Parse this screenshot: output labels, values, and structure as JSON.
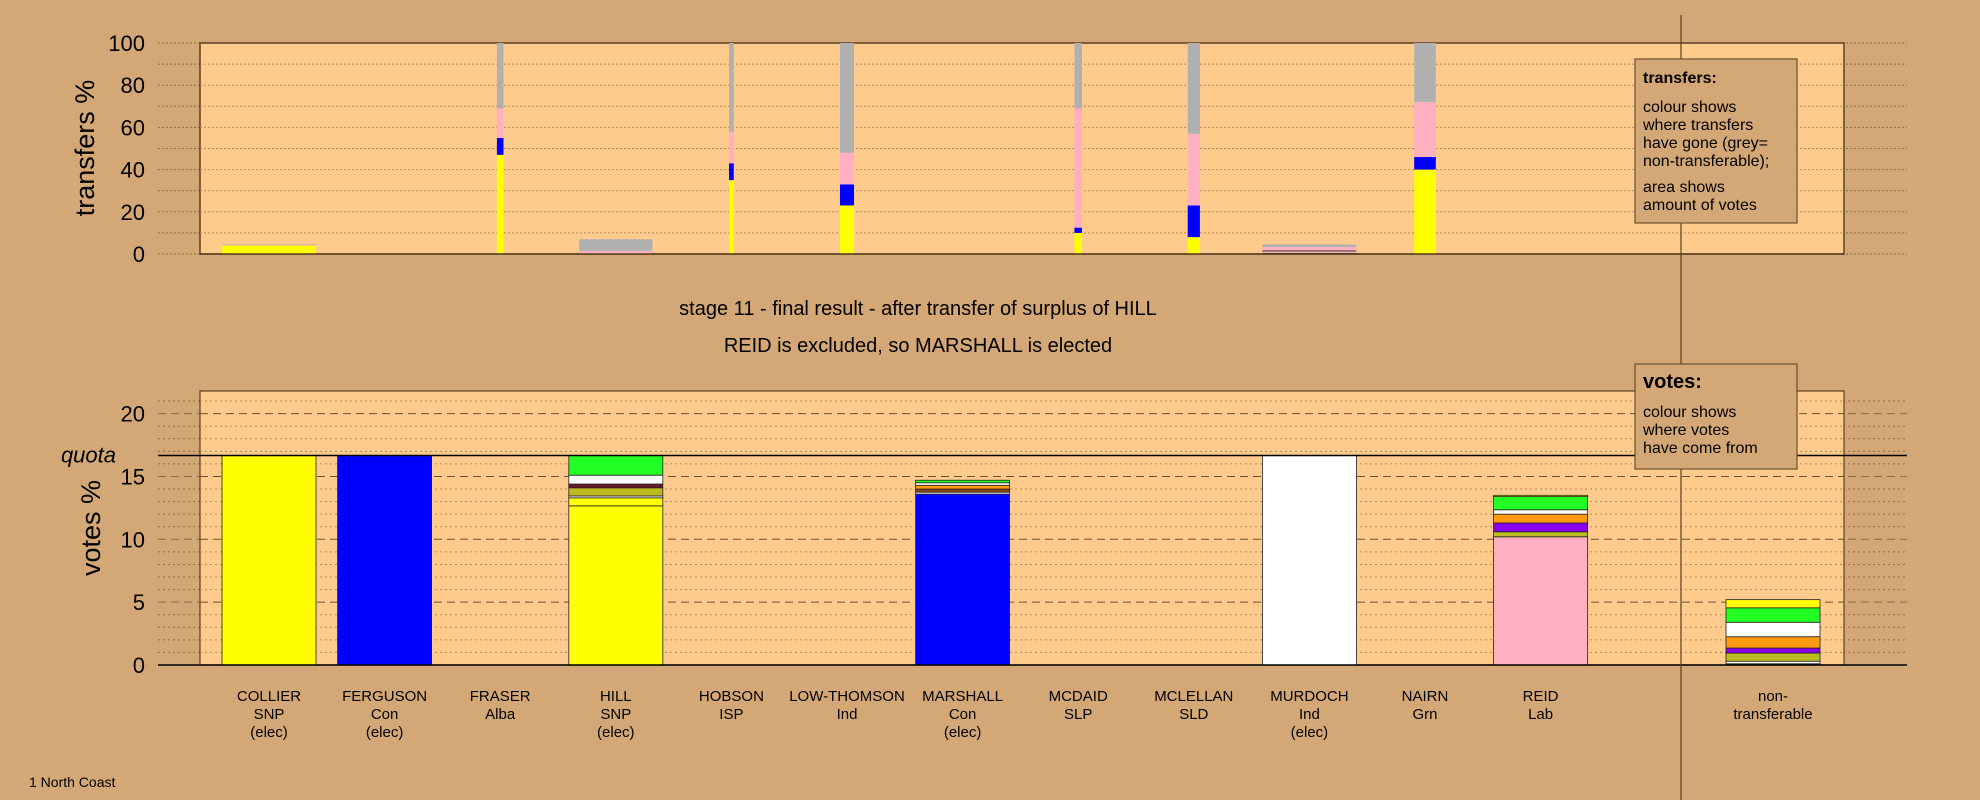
{
  "colors": {
    "background": "#D4A876",
    "plot": "#FFCB8C",
    "yellow": "#FFFF00",
    "blue": "#0000FF",
    "pink": "#FFB0C0",
    "grey": "#B0B0B0",
    "green": "#22FF22",
    "white": "#FFFFFF",
    "orange": "#FF9910",
    "purple": "#8800EE",
    "olive": "#BBBB22",
    "maroon": "#6A1A2A",
    "brown": "#8B4513",
    "dark": "#333333"
  },
  "title_line1": "stage 11 - final result - after transfer of surplus of HILL",
  "title_line2": "REID is excluded, so MARSHALL is elected",
  "footer": "1 North Coast",
  "chart_data": [
    {
      "type": "bar",
      "title": "transfers",
      "ylabel": "transfers %",
      "ylim": [
        0,
        100
      ],
      "yticks": [
        "0",
        "20",
        "40",
        "60",
        "80",
        "100"
      ],
      "legend": {
        "placement": "top-right",
        "title": "transfers:",
        "lines1": [
          "colour shows",
          "where transfers",
          "have gone (grey=",
          "non-transferable);"
        ],
        "lines2": [
          "area shows",
          "amount of votes"
        ]
      },
      "bars": [
        {
          "category": 0,
          "width_share": 1.0,
          "segments": [
            {
              "c": "yellow",
              "to": 4
            },
            {
              "c": "pink",
              "to": 4.3
            },
            {
              "c": "grey",
              "to": 4.6
            }
          ]
        },
        {
          "category": 2,
          "width_share": 0.07,
          "segments": [
            {
              "c": "yellow",
              "to": 47
            },
            {
              "c": "blue",
              "to": 55
            },
            {
              "c": "pink",
              "to": 69
            },
            {
              "c": "grey",
              "to": 100
            }
          ]
        },
        {
          "category": 3,
          "width_share": 0.78,
          "segments": [
            {
              "c": "pink",
              "to": 1.5
            },
            {
              "c": "grey",
              "to": 7
            }
          ]
        },
        {
          "category": 4,
          "width_share": 0.05,
          "segments": [
            {
              "c": "yellow",
              "to": 35
            },
            {
              "c": "blue",
              "to": 43
            },
            {
              "c": "pink",
              "to": 58
            },
            {
              "c": "grey",
              "to": 100
            }
          ]
        },
        {
          "category": 5,
          "width_share": 0.15,
          "segments": [
            {
              "c": "yellow",
              "to": 23
            },
            {
              "c": "blue",
              "to": 33
            },
            {
              "c": "pink",
              "to": 48
            },
            {
              "c": "grey",
              "to": 100
            }
          ]
        },
        {
          "category": 7,
          "width_share": 0.08,
          "segments": [
            {
              "c": "yellow",
              "to": 10
            },
            {
              "c": "blue",
              "to": 12.5
            },
            {
              "c": "pink",
              "to": 69
            },
            {
              "c": "grey",
              "to": 100
            }
          ]
        },
        {
          "category": 8,
          "width_share": 0.13,
          "segments": [
            {
              "c": "yellow",
              "to": 8
            },
            {
              "c": "blue",
              "to": 23
            },
            {
              "c": "pink",
              "to": 57
            },
            {
              "c": "grey",
              "to": 100
            }
          ]
        },
        {
          "category": 9,
          "width_share": 1.0,
          "segments": [
            {
              "c": "dark",
              "to": 0.5
            },
            {
              "c": "pink",
              "to": 1.2
            },
            {
              "c": "dark",
              "to": 1.7
            },
            {
              "c": "pink",
              "to": 3.3
            },
            {
              "c": "grey",
              "to": 4.5
            }
          ]
        },
        {
          "category": 10,
          "width_share": 0.23,
          "segments": [
            {
              "c": "yellow",
              "to": 40
            },
            {
              "c": "blue",
              "to": 46
            },
            {
              "c": "pink",
              "to": 72
            },
            {
              "c": "grey",
              "to": 100
            }
          ]
        }
      ]
    },
    {
      "type": "bar",
      "title": "votes",
      "ylabel": "votes %",
      "ylim": [
        0,
        21.8
      ],
      "yticks": [
        "0",
        "5",
        "10",
        "15",
        "20"
      ],
      "quota": 16.67,
      "quota_label": "quota",
      "legend": {
        "placement": "top-right",
        "title": "votes:",
        "lines1": [
          "colour shows",
          "where votes",
          "have come from"
        ]
      },
      "categories": [
        {
          "name": "COLLIER",
          "party": "SNP",
          "note": "(elec)",
          "segments": [
            {
              "c": "yellow",
              "to": 16.67
            }
          ]
        },
        {
          "name": "FERGUSON",
          "party": "Con",
          "note": "(elec)",
          "segments": [
            {
              "c": "blue",
              "to": 16.67
            }
          ]
        },
        {
          "name": "FRASER",
          "party": "Alba",
          "note": "",
          "segments": []
        },
        {
          "name": "HILL",
          "party": "SNP",
          "note": "(elec)",
          "segments": [
            {
              "c": "yellow",
              "to": 12.66
            },
            {
              "c": "yellow",
              "to": 13.3
            },
            {
              "c": "white",
              "to": 13.45
            },
            {
              "c": "olive",
              "to": 14.1
            },
            {
              "c": "maroon",
              "to": 14.4
            },
            {
              "c": "white",
              "to": 15.1
            },
            {
              "c": "green",
              "to": 16.67
            }
          ]
        },
        {
          "name": "HOBSON",
          "party": "ISP",
          "note": "",
          "segments": []
        },
        {
          "name": "LOW-THOMSON",
          "party": "Ind",
          "note": "",
          "segments": []
        },
        {
          "name": "MARSHALL",
          "party": "Con",
          "note": "(elec)",
          "segments": [
            {
              "c": "blue",
              "to": 13.6
            },
            {
              "c": "white",
              "to": 13.75
            },
            {
              "c": "brown",
              "to": 14.0
            },
            {
              "c": "orange",
              "to": 14.3
            },
            {
              "c": "white",
              "to": 14.5
            },
            {
              "c": "green",
              "to": 14.7
            }
          ]
        },
        {
          "name": "MCDAID",
          "party": "SLP",
          "note": "",
          "segments": []
        },
        {
          "name": "MCLELLAN",
          "party": "SLD",
          "note": "",
          "segments": []
        },
        {
          "name": "MURDOCH",
          "party": "Ind",
          "note": "(elec)",
          "segments": [
            {
              "c": "white",
              "to": 16.67
            }
          ]
        },
        {
          "name": "NAIRN",
          "party": "Grn",
          "note": "",
          "segments": []
        },
        {
          "name": "REID",
          "party": "Lab",
          "note": "",
          "segments": [
            {
              "c": "pink",
              "to": 10.2
            },
            {
              "c": "olive",
              "to": 10.6
            },
            {
              "c": "purple",
              "to": 11.3
            },
            {
              "c": "orange",
              "to": 12.0
            },
            {
              "c": "white",
              "to": 12.35
            },
            {
              "c": "green",
              "to": 13.4
            },
            {
              "c": "yellow",
              "to": 13.5
            }
          ]
        }
      ],
      "nontransferable": {
        "name": "non-",
        "party": "transferable",
        "segments": [
          {
            "c": "dark",
            "to": 0.1
          },
          {
            "c": "white",
            "to": 0.3
          },
          {
            "c": "olive",
            "to": 0.95
          },
          {
            "c": "purple",
            "to": 1.35
          },
          {
            "c": "orange",
            "to": 2.25
          },
          {
            "c": "white",
            "to": 3.4
          },
          {
            "c": "green",
            "to": 4.55
          },
          {
            "c": "yellow",
            "to": 5.2
          }
        ]
      }
    }
  ]
}
